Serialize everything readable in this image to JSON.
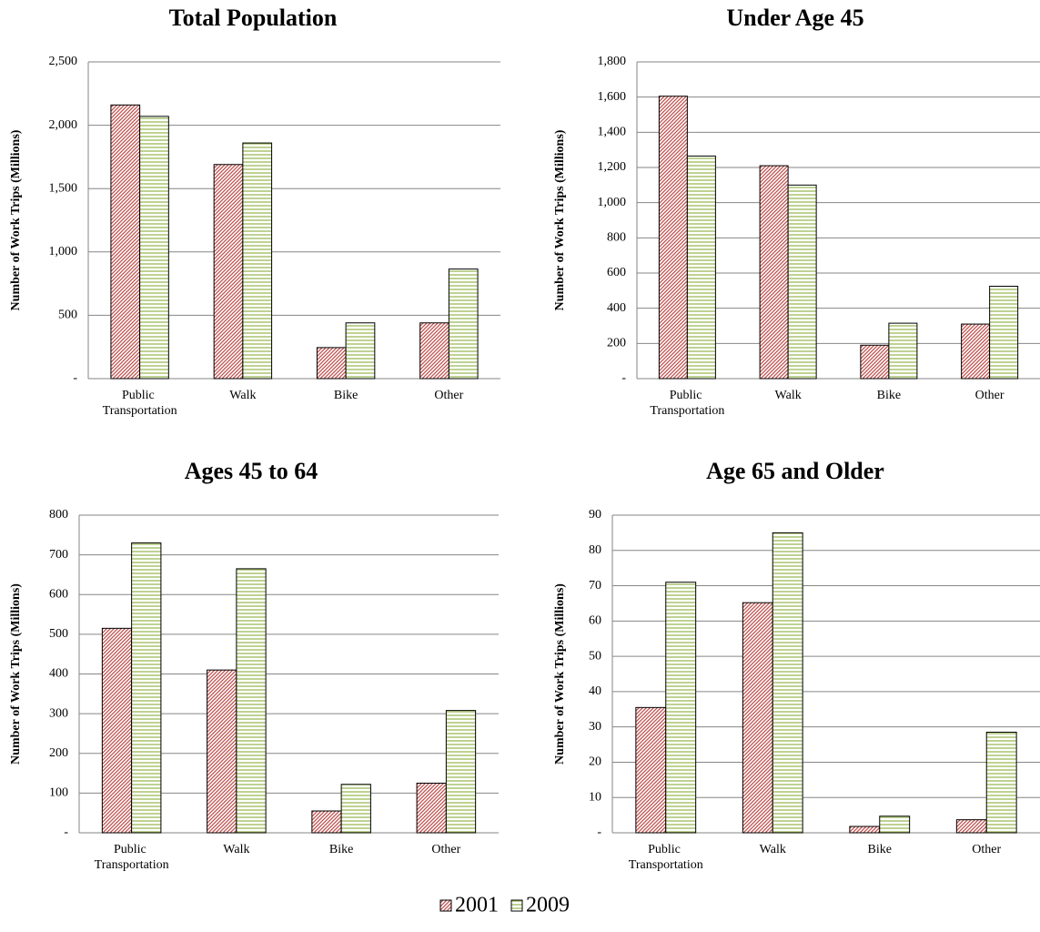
{
  "chart_data": [
    {
      "type": "bar",
      "title": "Total Population",
      "ylabel": "Number of Work Trips (Millions)",
      "categories": [
        "Public Transportation",
        "Walk",
        "Bike",
        "Other"
      ],
      "series": [
        {
          "name": "2001",
          "color": "#c0504d",
          "values": [
            2160,
            1690,
            245,
            440
          ]
        },
        {
          "name": "2009",
          "color": "#9bbb59",
          "values": [
            2070,
            1860,
            440,
            865
          ]
        }
      ],
      "ylim": [
        0,
        2500
      ],
      "yticks": [
        {
          "value": 0,
          "label": "-"
        },
        500,
        {
          "value": 1000,
          "label": "1,000"
        },
        {
          "value": 1500,
          "label": "1,500"
        },
        {
          "value": 2000,
          "label": "2,000"
        },
        {
          "value": 2500,
          "label": "2,500"
        }
      ],
      "grid": true
    },
    {
      "type": "bar",
      "title": "Under Age 45",
      "ylabel": "Number of Work Trips (Millions)",
      "categories": [
        "Public Transportation",
        "Walk",
        "Bike",
        "Other"
      ],
      "series": [
        {
          "name": "2001",
          "color": "#c0504d",
          "values": [
            1605,
            1210,
            190,
            310
          ]
        },
        {
          "name": "2009",
          "color": "#9bbb59",
          "values": [
            1265,
            1100,
            315,
            525
          ]
        }
      ],
      "ylim": [
        0,
        1800
      ],
      "yticks": [
        {
          "value": 0,
          "label": "-"
        },
        200,
        400,
        600,
        800,
        {
          "value": 1000,
          "label": "1,000"
        },
        {
          "value": 1200,
          "label": "1,200"
        },
        {
          "value": 1400,
          "label": "1,400"
        },
        {
          "value": 1600,
          "label": "1,600"
        },
        {
          "value": 1800,
          "label": "1,800"
        }
      ],
      "grid": true
    },
    {
      "type": "bar",
      "title": "Ages 45 to 64",
      "ylabel": "Number of Work Trips (Millions)",
      "categories": [
        "Public Transportation",
        "Walk",
        "Bike",
        "Other"
      ],
      "series": [
        {
          "name": "2001",
          "color": "#c0504d",
          "values": [
            515,
            410,
            55,
            125
          ]
        },
        {
          "name": "2009",
          "color": "#9bbb59",
          "values": [
            730,
            665,
            122,
            308
          ]
        }
      ],
      "ylim": [
        0,
        800
      ],
      "yticks": [
        {
          "value": 0,
          "label": "-"
        },
        100,
        200,
        300,
        400,
        500,
        600,
        700,
        800
      ],
      "grid": true
    },
    {
      "type": "bar",
      "title": "Age 65 and Older",
      "ylabel": "Number of Work Trips (Millions)",
      "categories": [
        "Public Transportation",
        "Walk",
        "Bike",
        "Other"
      ],
      "series": [
        {
          "name": "2001",
          "color": "#c0504d",
          "values": [
            35.5,
            65.2,
            1.8,
            3.7
          ]
        },
        {
          "name": "2009",
          "color": "#9bbb59",
          "values": [
            71,
            85,
            4.7,
            28.5
          ]
        }
      ],
      "ylim": [
        0,
        90
      ],
      "yticks": [
        {
          "value": 0,
          "label": "-"
        },
        10,
        20,
        30,
        40,
        50,
        60,
        70,
        80,
        90
      ],
      "grid": true
    }
  ]
}
